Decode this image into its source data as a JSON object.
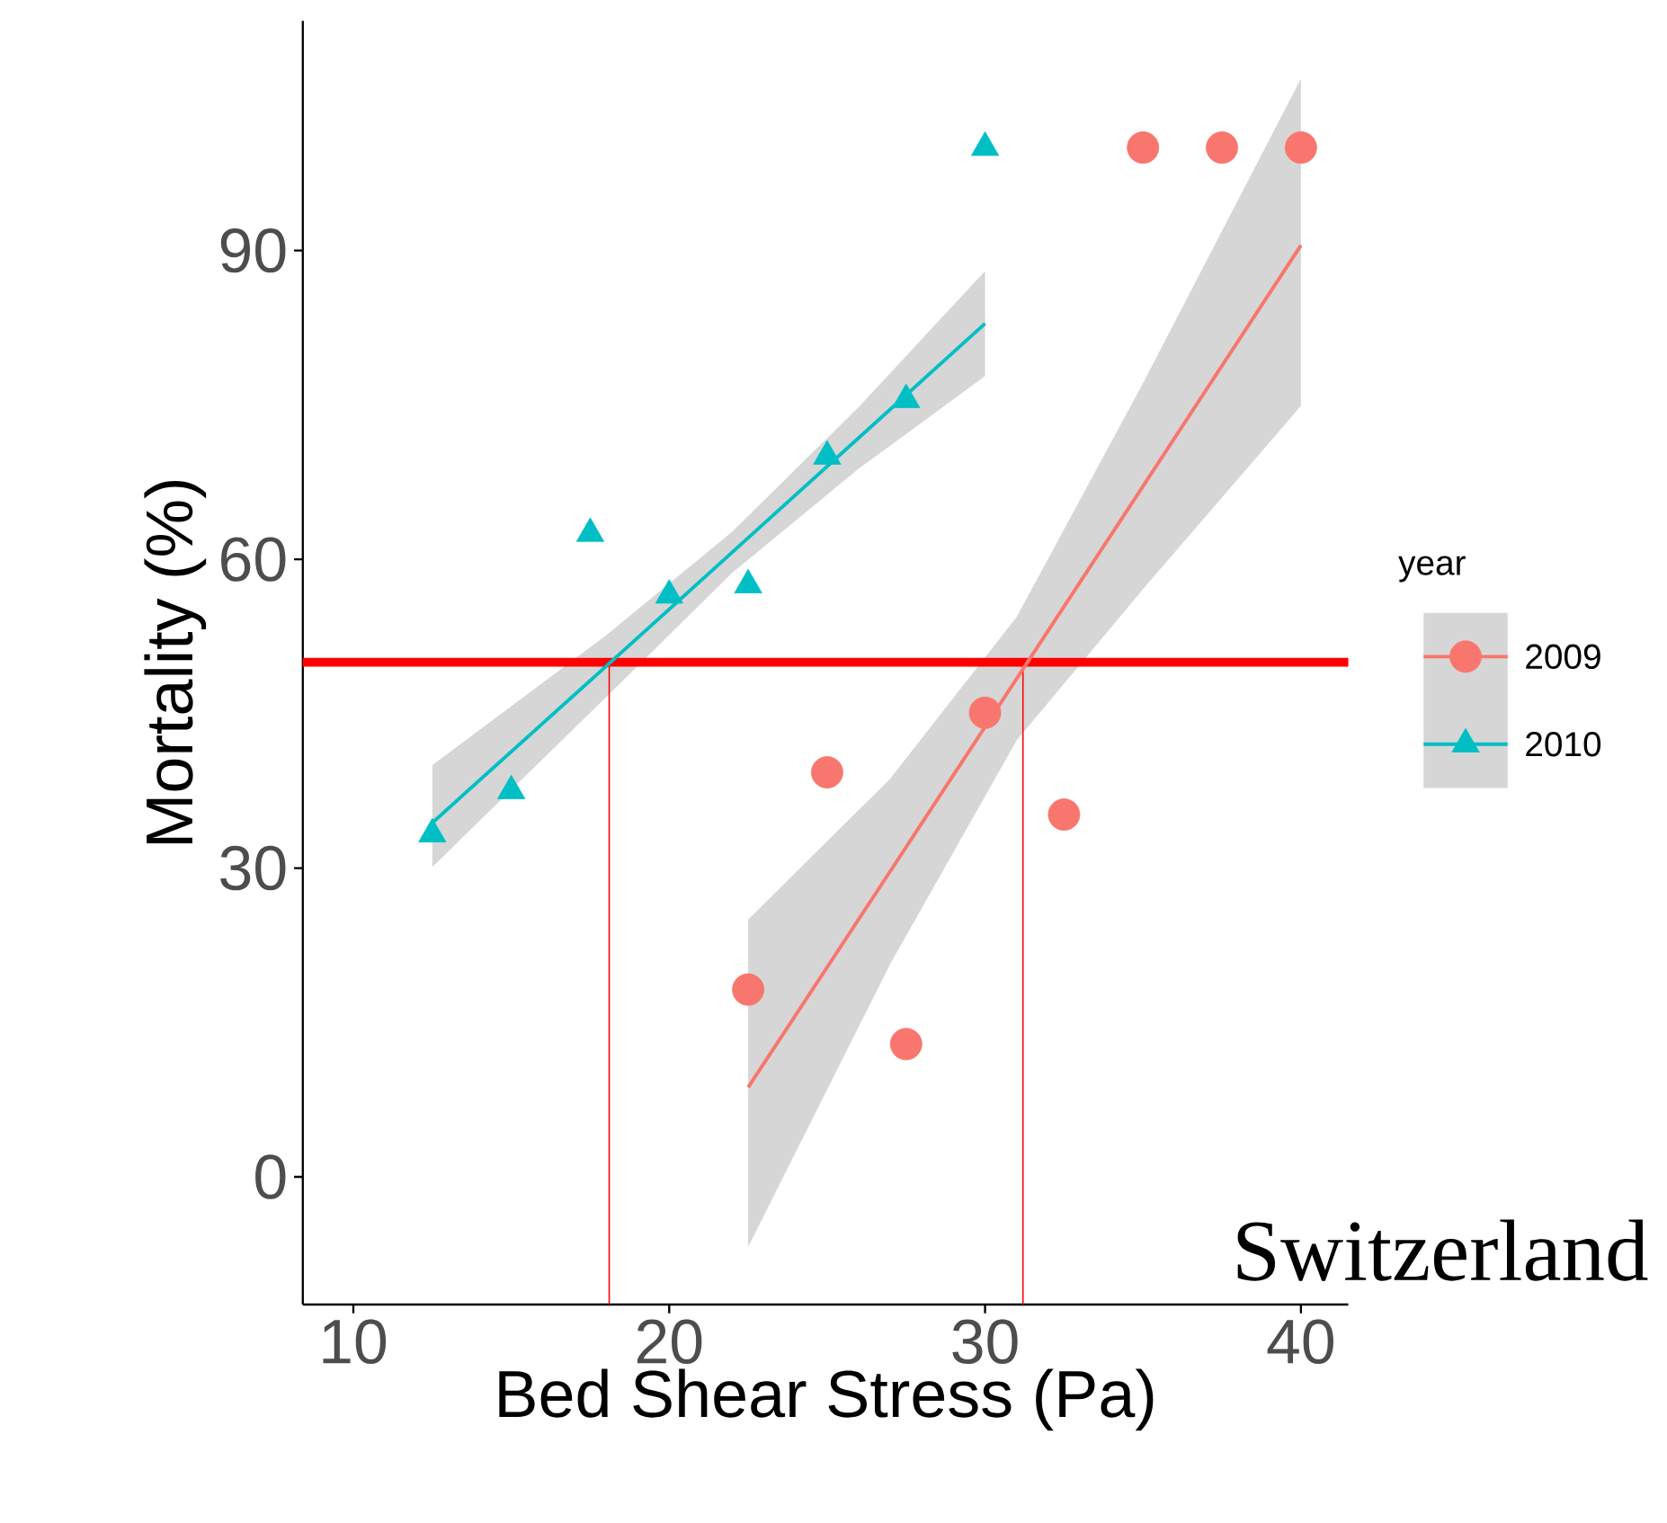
{
  "chart_data": {
    "type": "scatter",
    "xlabel": "Bed Shear Stress (Pa)",
    "ylabel": "Mortality (%)",
    "legend_title": "year",
    "legend": "right",
    "xlim": [
      8.4,
      41.5
    ],
    "ylim": [
      -12.4,
      112.3
    ],
    "xticks": [
      10,
      20,
      30,
      40
    ],
    "yticks": [
      0,
      30,
      60,
      90
    ],
    "series": [
      {
        "name": "2009",
        "color": "#f8766d",
        "marker": "circle",
        "x": [
          22.5,
          25,
          27.5,
          30,
          32.5,
          35,
          37.5,
          40
        ],
        "values": [
          18.2,
          39.3,
          12.9,
          45.1,
          35.2,
          100,
          100,
          100
        ]
      },
      {
        "name": "2010",
        "color": "#00bfc4",
        "marker": "triangle",
        "x": [
          12.5,
          15,
          17.5,
          20,
          22.5,
          25,
          27.5,
          30
        ],
        "values": [
          33.3,
          37.5,
          62.5,
          56.5,
          57.5,
          70,
          75.5,
          100
        ]
      },
      {
        "type": "line",
        "color": "#f8766d",
        "x": [
          22.5,
          27,
          31,
          35,
          40
        ],
        "values": [
          8.7,
          29.7,
          48.4,
          67.1,
          90.5
        ],
        "lower": [
          -6.8,
          20.7,
          42.4,
          57.1,
          74.9
        ],
        "upper": [
          25,
          38.7,
          54.4,
          77.1,
          106.7
        ]
      },
      {
        "type": "line",
        "color": "#00bfc4",
        "x": [
          12.5,
          18,
          22,
          26,
          30
        ],
        "values": [
          34.4,
          49.6,
          60.7,
          71.8,
          82.9
        ],
        "lower": [
          30.1,
          46.6,
          58.7,
          68.8,
          77.8
        ],
        "upper": [
          40,
          52.6,
          62.7,
          74.8,
          88
        ]
      }
    ],
    "ref_lines": [
      {
        "axis": "y",
        "value": 50,
        "color": "#ff0000"
      },
      {
        "axis": "x",
        "value": 18.1,
        "color": "#ff0000"
      },
      {
        "axis": "x",
        "value": 31.2,
        "color": "#ff0000"
      }
    ],
    "annotations": [
      "Switzerland"
    ]
  }
}
